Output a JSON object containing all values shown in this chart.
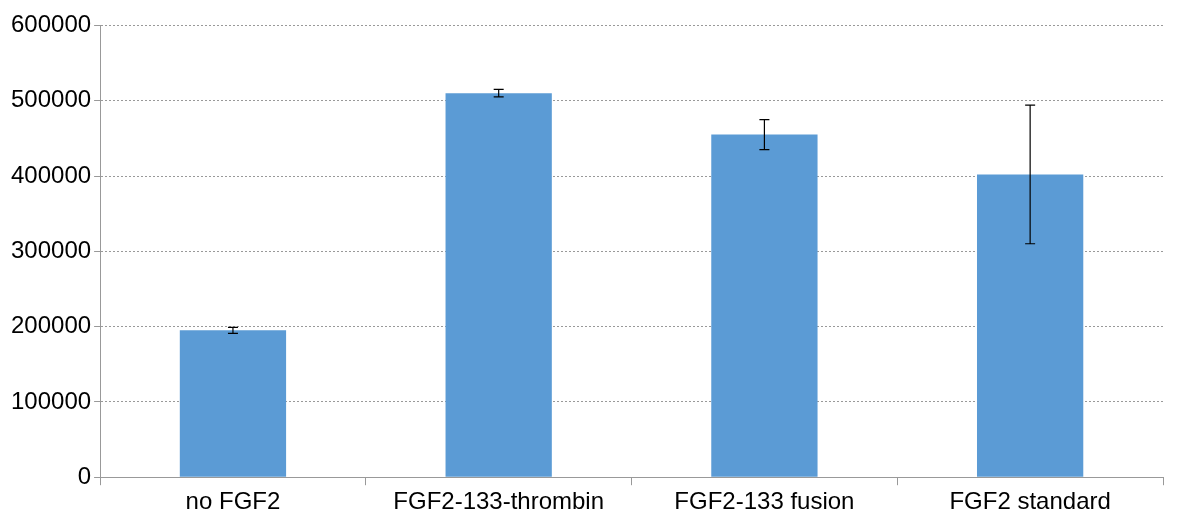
{
  "chart_data": {
    "type": "bar",
    "categories": [
      "no FGF2",
      "FGF2-133-thrombin",
      "FGF2-133 fusion",
      "FGF2 standard"
    ],
    "values": [
      195000,
      510000,
      455000,
      402000
    ],
    "errors": [
      4000,
      5000,
      20000,
      92000
    ],
    "color": "#5b9bd5",
    "ylim": [
      0,
      600000
    ],
    "yticks": [
      0,
      100000,
      200000,
      300000,
      400000,
      500000,
      600000
    ],
    "grid": "y",
    "legend": false
  }
}
